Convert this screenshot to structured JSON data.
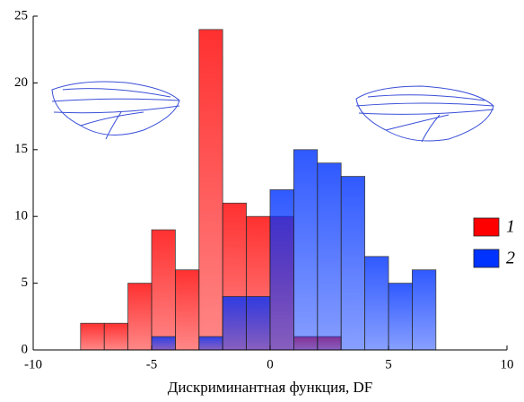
{
  "chart_data": {
    "type": "histogram",
    "x_label": "Дискриминантная функция, DF",
    "bins": [
      -8,
      -7,
      -6,
      -5,
      -4,
      -3,
      -2,
      -1,
      0,
      1,
      2,
      3,
      4,
      5,
      6,
      7
    ],
    "series": [
      {
        "name": "1",
        "color": "#ff0000",
        "values": [
          2,
          2,
          5,
          9,
          6,
          24,
          11,
          10,
          10,
          1,
          1,
          0,
          0,
          0,
          0
        ]
      },
      {
        "name": "2",
        "color": "#0033ff",
        "values": [
          0,
          0,
          0,
          1,
          0,
          1,
          4,
          4,
          12,
          15,
          14,
          13,
          7,
          5,
          6
        ]
      }
    ],
    "xlim": [
      -10,
      10
    ],
    "xticks": [
      -10,
      -5,
      0,
      5,
      10
    ],
    "ylim": [
      0,
      25
    ],
    "yticks": [
      0,
      5,
      10,
      15,
      20,
      25
    ],
    "grid": false,
    "legend": "right"
  }
}
